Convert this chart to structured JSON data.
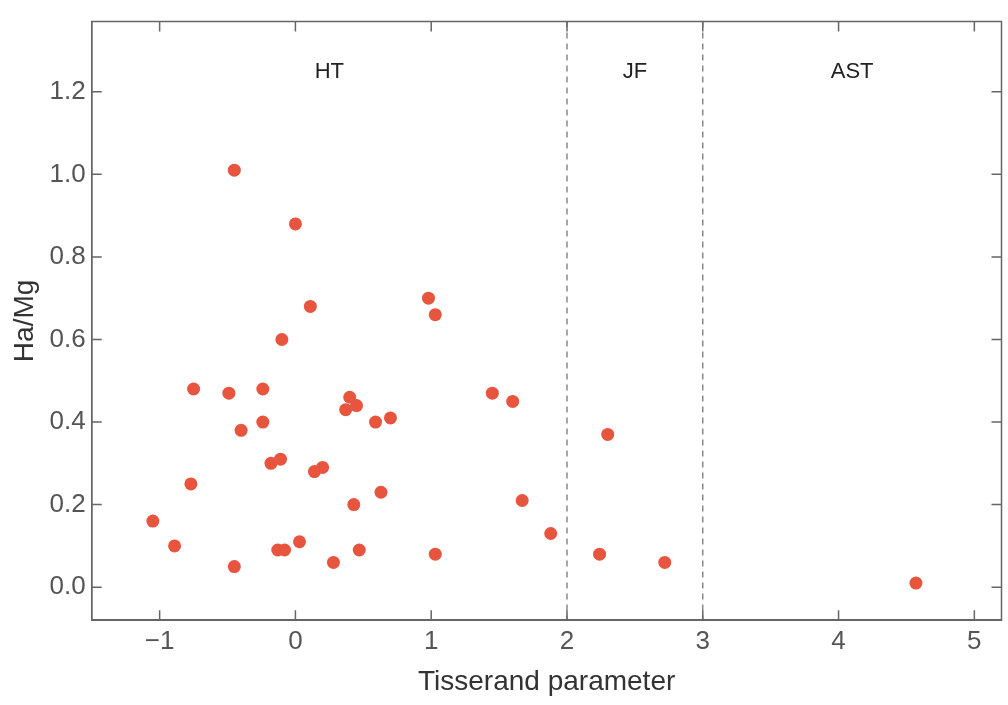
{
  "chart_data": {
    "type": "scatter",
    "xlabel": "Tisserand parameter",
    "ylabel": "Ha/Mg",
    "xlim": [
      -1.5,
      5.2
    ],
    "ylim": [
      -0.08,
      1.37
    ],
    "xticks": [
      {
        "value": -1,
        "label": "−1"
      },
      0,
      1,
      2,
      3,
      4,
      5
    ],
    "yticks": [
      {
        "value": 0,
        "label": "0.0"
      },
      0.2,
      0.4,
      0.6,
      0.8,
      {
        "value": 1,
        "label": "1.0"
      },
      1.2
    ],
    "grid": false,
    "legend": false,
    "marker": "circle",
    "series": [
      {
        "color": "#e8553e",
        "x": [
          -1.05,
          -0.89,
          -0.75,
          -0.77,
          -0.49,
          -0.45,
          -0.45,
          -0.4,
          -0.24,
          -0.24,
          -0.18,
          -0.11,
          -0.1,
          -0.13,
          -0.08,
          0,
          0.03,
          0.11,
          0.14,
          0.2,
          0.28,
          0.37,
          0.4,
          0.45,
          0.43,
          0.47,
          0.59,
          0.63,
          0.7,
          0.98,
          1.03,
          1.03,
          1.45,
          1.6,
          1.67,
          1.88,
          2.3,
          2.24,
          2.72,
          4.57
        ],
        "values": [
          0.16,
          0.1,
          0.48,
          0.25,
          0.47,
          1.01,
          0.05,
          0.38,
          0.48,
          0.4,
          0.3,
          0.31,
          0.6,
          0.09,
          0.09,
          0.88,
          0.11,
          0.68,
          0.28,
          0.29,
          0.06,
          0.43,
          0.46,
          0.44,
          0.2,
          0.09,
          0.4,
          0.23,
          0.41,
          0.7,
          0.66,
          0.08,
          0.47,
          0.45,
          0.21,
          0.13,
          0.37,
          0.08,
          0.06,
          0.01
        ]
      }
    ],
    "ref_lines": [
      {
        "axis": "x",
        "value": 2,
        "color": "#777777",
        "line_style": "dashed"
      },
      {
        "axis": "x",
        "value": 3,
        "color": "#777777",
        "line_style": "dashed"
      }
    ],
    "annotations": [
      "HT",
      "JF",
      "AST"
    ]
  }
}
